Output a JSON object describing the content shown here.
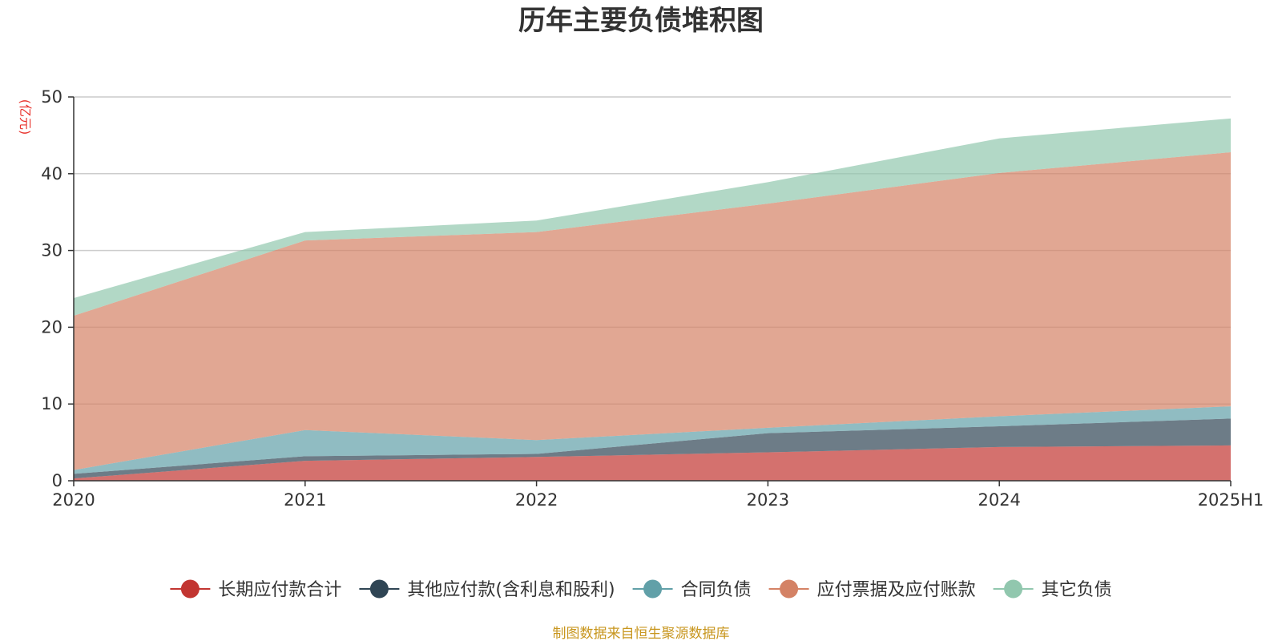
{
  "chart_data": {
    "type": "area",
    "stacked": true,
    "title": "历年主要负债堆积图",
    "ylabel": "(亿元)",
    "xlabel": "",
    "categories": [
      "2020",
      "2021",
      "2022",
      "2023",
      "2024",
      "2025H1"
    ],
    "ylim": [
      0,
      50
    ],
    "yticks": [
      0,
      10,
      20,
      30,
      40,
      50
    ],
    "grid": true,
    "legend_position": "bottom",
    "series": [
      {
        "name": "长期应付款合计",
        "color": "#c23531",
        "values": [
          0.3,
          2.6,
          3.1,
          3.7,
          4.4,
          4.6
        ]
      },
      {
        "name": "其他应付款(含利息和股利)",
        "color": "#2f4554",
        "values": [
          0.6,
          0.6,
          0.4,
          2.5,
          2.7,
          3.5
        ]
      },
      {
        "name": "合同负债",
        "color": "#61a0a8",
        "values": [
          0.5,
          3.4,
          1.8,
          0.7,
          1.3,
          1.6
        ]
      },
      {
        "name": "应付票据及应付账款",
        "color": "#d48265",
        "values": [
          20.1,
          24.7,
          27.1,
          29.2,
          31.7,
          33.1
        ]
      },
      {
        "name": "其它负债",
        "color": "#91c7ae",
        "values": [
          2.3,
          1.1,
          1.5,
          2.8,
          4.5,
          4.4
        ]
      }
    ],
    "source_note": "制图数据来自恒生聚源数据库"
  }
}
